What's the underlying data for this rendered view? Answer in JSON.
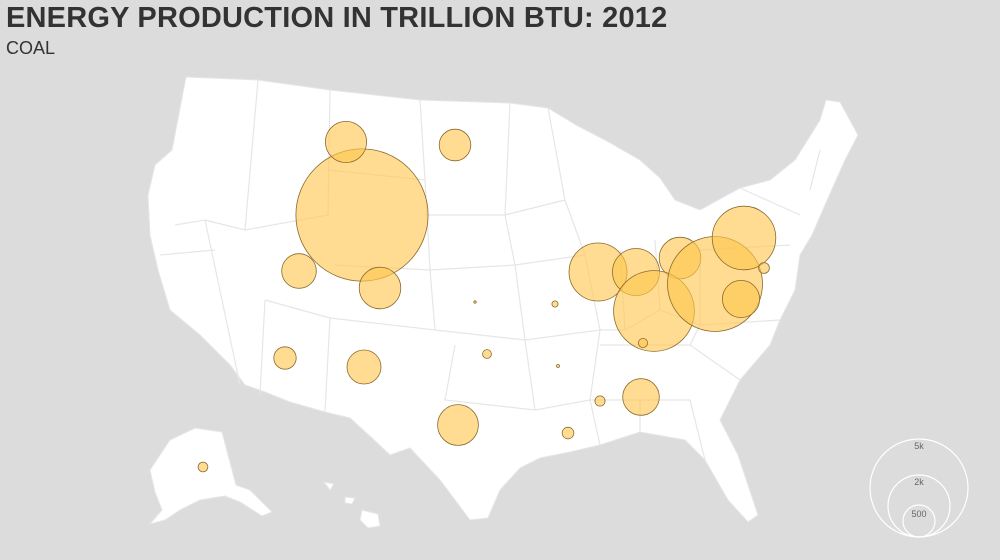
{
  "title": "ENERGY PRODUCTION IN TRILLION BTU: 2012",
  "subtitle": "COAL",
  "colors": {
    "background": "#dcdcdc",
    "land": "#ffffff",
    "state_border": "#e6e6e6",
    "bubble_fill": "#ffc74d",
    "bubble_stroke": "#8a6a2e",
    "legend_stroke": "#ffffff"
  },
  "bubbles": [
    {
      "state": "Wyoming",
      "value": 9100
    },
    {
      "state": "Montana",
      "value": 880
    },
    {
      "state": "North Dakota",
      "value": 520
    },
    {
      "state": "Utah",
      "value": 620
    },
    {
      "state": "Colorado",
      "value": 900
    },
    {
      "state": "Arizona",
      "value": 260
    },
    {
      "state": "New Mexico",
      "value": 600
    },
    {
      "state": "Kansas",
      "value": 3
    },
    {
      "state": "Missouri",
      "value": 20
    },
    {
      "state": "Oklahoma",
      "value": 40
    },
    {
      "state": "Arkansas",
      "value": 5
    },
    {
      "state": "Texas",
      "value": 870
    },
    {
      "state": "Louisiana",
      "value": 70
    },
    {
      "state": "Mississippi",
      "value": 55
    },
    {
      "state": "Alabama",
      "value": 700
    },
    {
      "state": "Illinois",
      "value": 1750
    },
    {
      "state": "Indiana",
      "value": 1150
    },
    {
      "state": "Ohio",
      "value": 900
    },
    {
      "state": "Kentucky",
      "value": 3400
    },
    {
      "state": "Tennessee",
      "value": 45
    },
    {
      "state": "West Virginia",
      "value": 4700
    },
    {
      "state": "Pennsylvania",
      "value": 2100
    },
    {
      "state": "Virginia",
      "value": 720
    },
    {
      "state": "Maryland",
      "value": 60
    },
    {
      "state": "Alaska",
      "value": 50
    }
  ],
  "legend": {
    "items": [
      {
        "label": "5k",
        "value": 5000
      },
      {
        "label": "2k",
        "value": 2000
      },
      {
        "label": "500",
        "value": 500
      }
    ]
  }
}
